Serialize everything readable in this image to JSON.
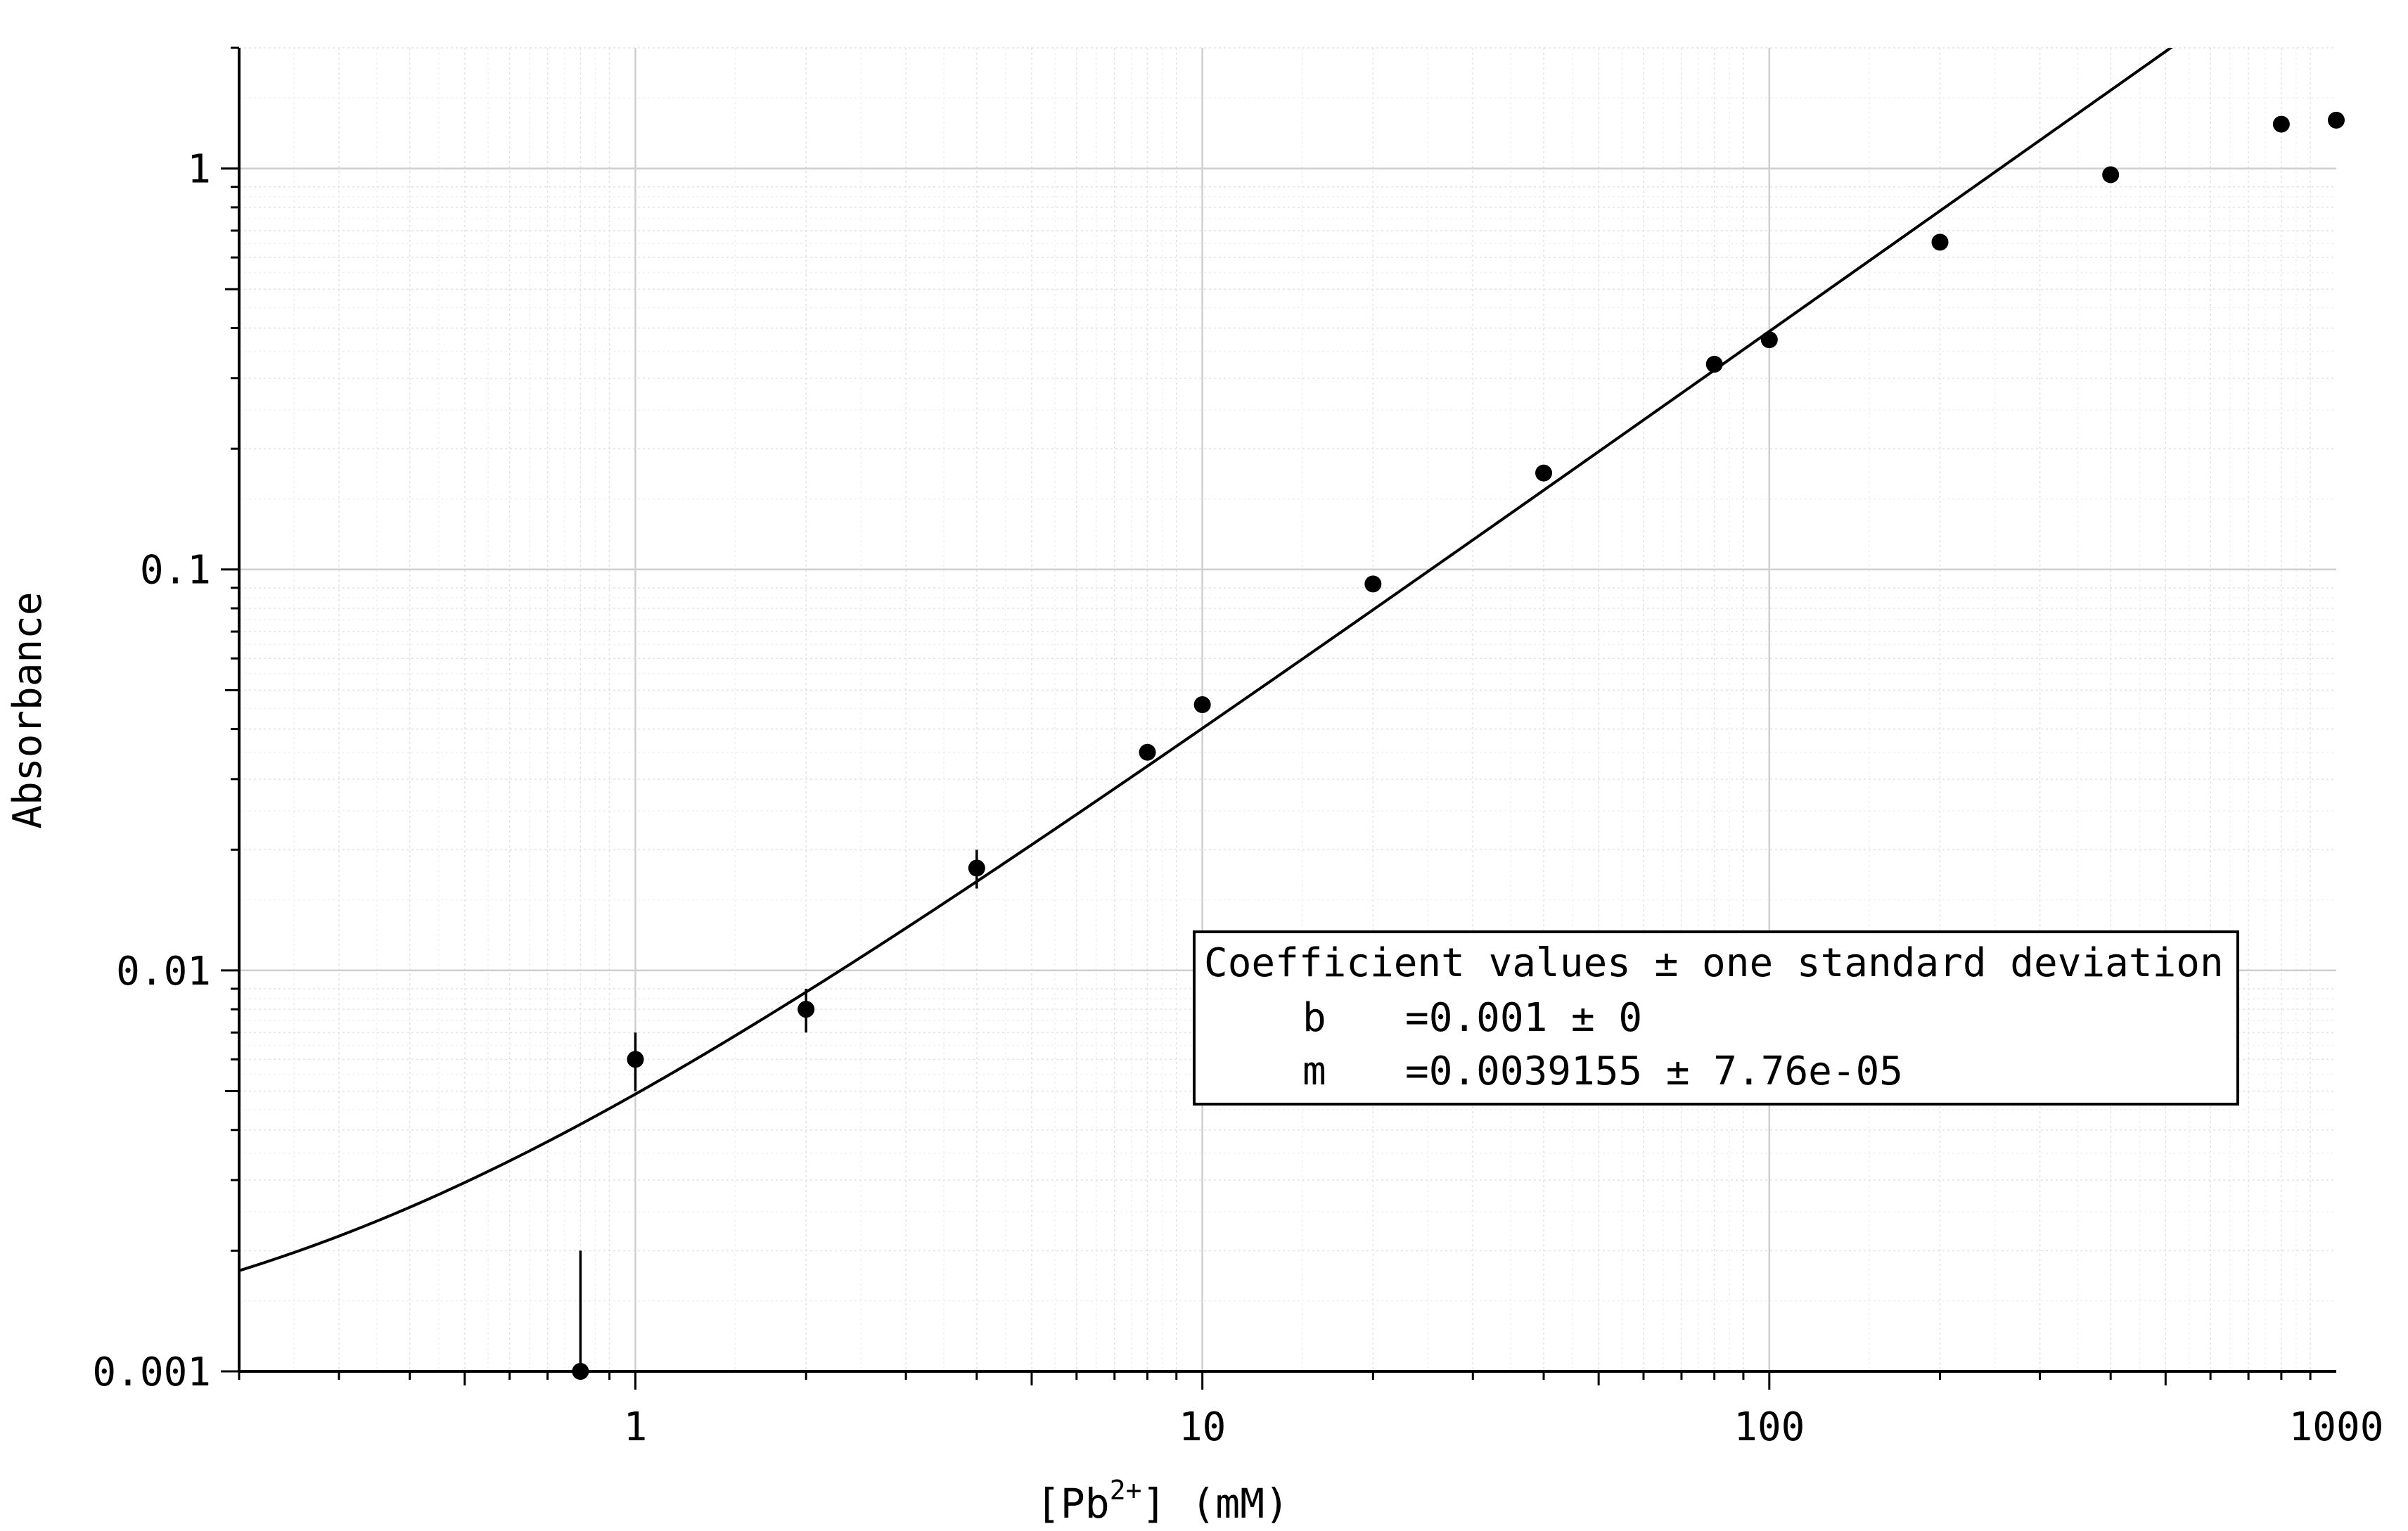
{
  "chart_data": {
    "type": "scatter",
    "xlabel_main": "[Pb",
    "xlabel_sup": "2+",
    "xlabel_tail": "] (mM)",
    "ylabel": "Absorbance",
    "x_scale": "log",
    "y_scale": "log",
    "xlim": [
      0.2,
      1000
    ],
    "ylim": [
      0.001,
      2
    ],
    "grid": true,
    "x_tick_labels": [
      "1",
      "10",
      "100",
      "1000"
    ],
    "y_tick_labels": [
      "0.001",
      "0.01",
      "0.1",
      "1"
    ],
    "points": [
      {
        "x": 0.8,
        "y": 0.001,
        "err_low": 0.001,
        "err_high": 0.002
      },
      {
        "x": 1,
        "y": 0.006,
        "err_low": 0.005,
        "err_high": 0.007
      },
      {
        "x": 2,
        "y": 0.008,
        "err_low": 0.007,
        "err_high": 0.009
      },
      {
        "x": 4,
        "y": 0.018,
        "err_low": 0.016,
        "err_high": 0.02
      },
      {
        "x": 8,
        "y": 0.035,
        "err_low": 0.034,
        "err_high": 0.036
      },
      {
        "x": 10,
        "y": 0.046,
        "err_low": 0.044,
        "err_high": 0.048
      },
      {
        "x": 20,
        "y": 0.092,
        "err_low": 0.092,
        "err_high": 0.092
      },
      {
        "x": 40,
        "y": 0.174,
        "err_low": 0.174,
        "err_high": 0.174
      },
      {
        "x": 80,
        "y": 0.325,
        "err_low": 0.325,
        "err_high": 0.325
      },
      {
        "x": 100,
        "y": 0.374,
        "err_low": 0.374,
        "err_high": 0.374
      },
      {
        "x": 200,
        "y": 0.655,
        "err_low": 0.655,
        "err_high": 0.655
      },
      {
        "x": 400,
        "y": 0.965,
        "err_low": 0.965,
        "err_high": 0.965
      },
      {
        "x": 800,
        "y": 1.29,
        "err_low": 1.29,
        "err_high": 1.29
      },
      {
        "x": 1000,
        "y": 1.32,
        "err_low": 1.32,
        "err_high": 1.32
      }
    ],
    "fit": {
      "b": 0.001,
      "m": 0.0039155
    },
    "legend": {
      "placement": "lower-right",
      "title": "Coefficient values ± one standard deviation",
      "rows": [
        {
          "name": "b",
          "value": "=0.001 ± 0"
        },
        {
          "name": "m",
          "value": "=0.0039155 ± 7.76e-05"
        }
      ]
    }
  }
}
